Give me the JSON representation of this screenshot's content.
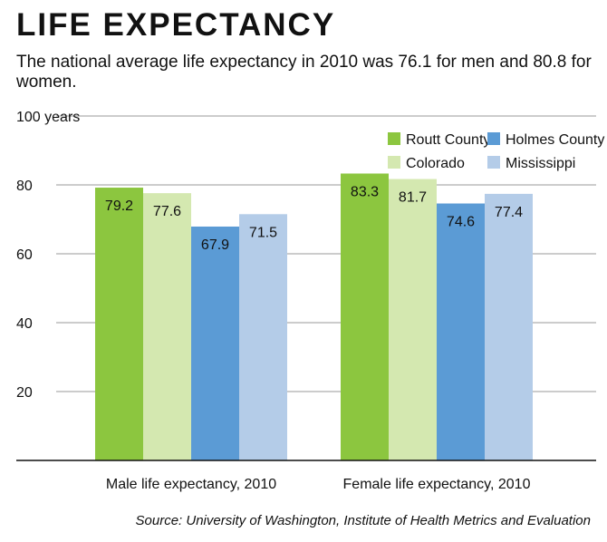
{
  "header": {
    "title": "LIFE EXPECTANCY",
    "subtitle": "The national average life expectancy in 2010 was 76.1 for men and 80.8 for women."
  },
  "footer": {
    "source": "Source: University of Washington, Institute of Health Metrics and Evaluation"
  },
  "chart_data": {
    "type": "bar",
    "title": "LIFE EXPECTANCY",
    "subtitle": "The national average life expectancy in 2010 was 76.1 for men and 80.8 for women.",
    "categories": [
      "Male life expectancy, 2010",
      "Female life expectancy, 2010"
    ],
    "series": [
      {
        "name": "Routt County",
        "values": [
          79.2,
          83.3
        ],
        "color": "#8cc63f"
      },
      {
        "name": "Colorado",
        "values": [
          77.6,
          81.7
        ],
        "color": "#d4e8b0"
      },
      {
        "name": "Holmes County",
        "values": [
          67.9,
          74.6
        ],
        "color": "#5b9bd5"
      },
      {
        "name": "Mississippi",
        "values": [
          71.5,
          77.4
        ],
        "color": "#b4cce8"
      }
    ],
    "y_ticks": [
      {
        "value": 20,
        "label": "20"
      },
      {
        "value": 40,
        "label": "40"
      },
      {
        "value": 60,
        "label": "60"
      },
      {
        "value": 80,
        "label": "80"
      },
      {
        "value": 100,
        "label": "100 years"
      }
    ],
    "ylim": [
      0,
      100
    ],
    "grid": true,
    "legend_position": "top-right",
    "xlabel": "",
    "ylabel": ""
  }
}
